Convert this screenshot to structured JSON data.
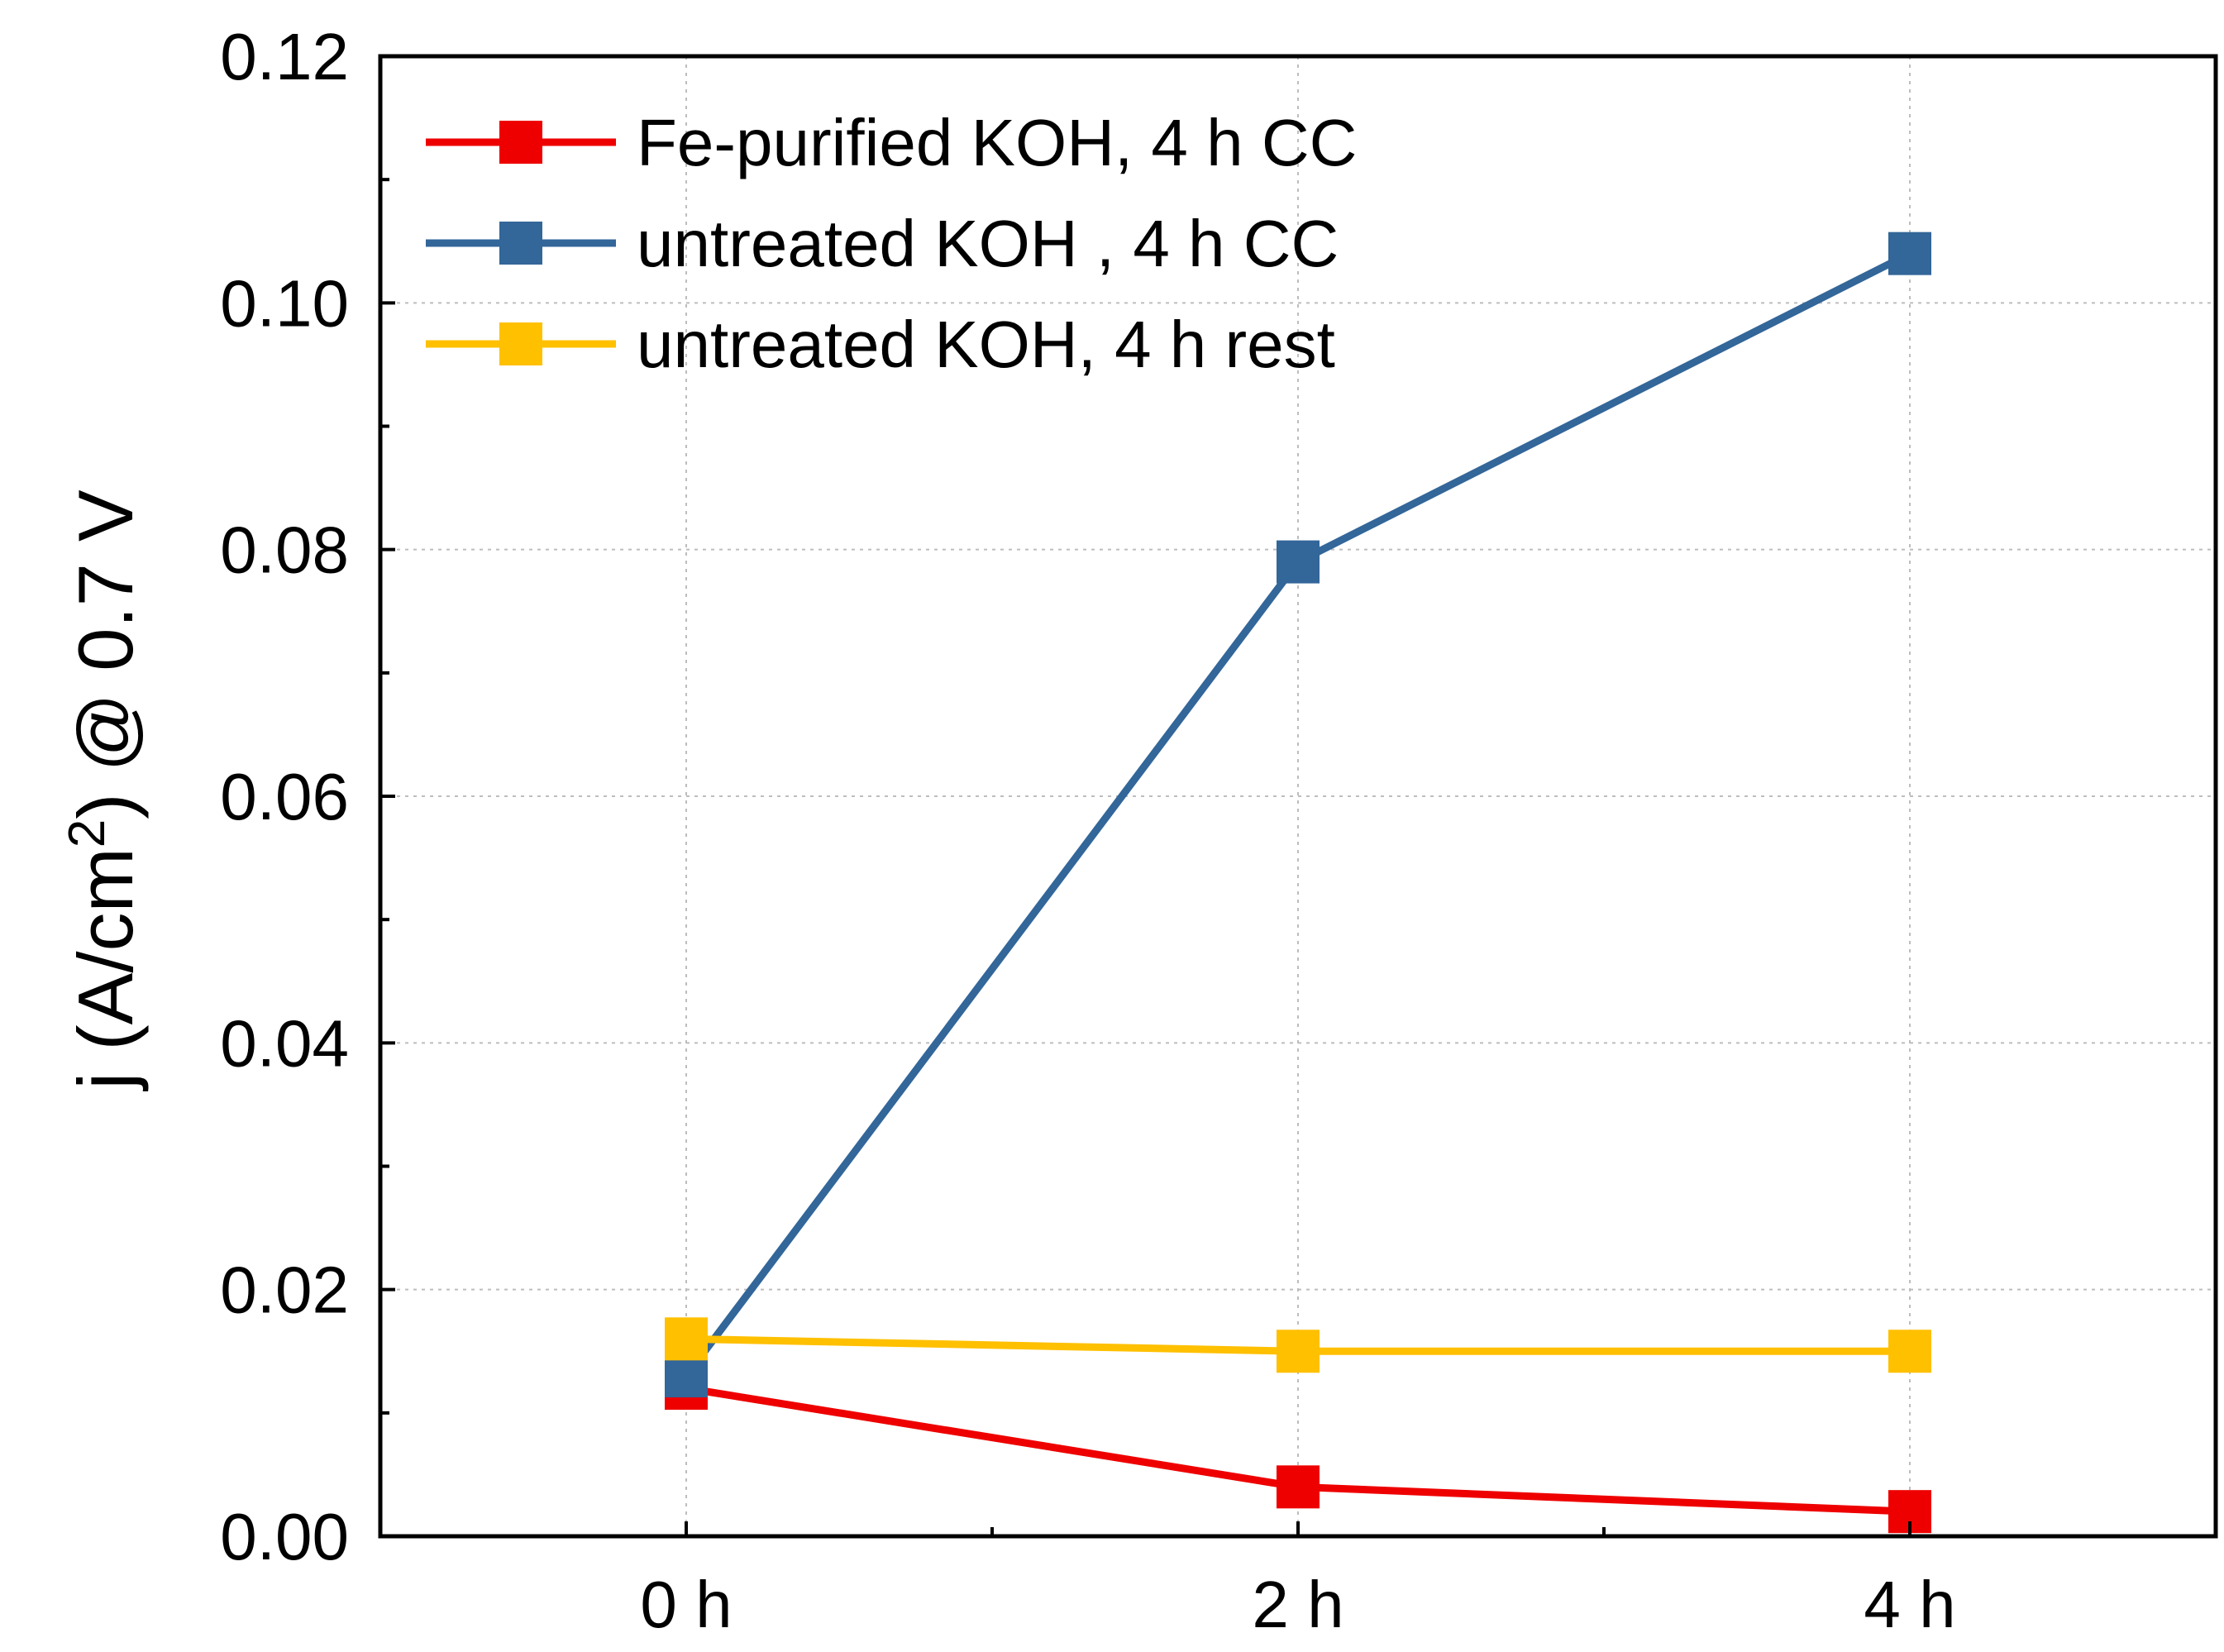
{
  "chart_data": {
    "type": "line",
    "title": "",
    "xlabel": "",
    "ylabel": {
      "prefix": "j (A/cm",
      "superscript": "2",
      "suffix": ") @ 0.7 V"
    },
    "categories": [
      "0 h",
      "2 h",
      "4 h"
    ],
    "x": [
      0,
      2,
      4
    ],
    "xlim": [
      -1,
      5
    ],
    "ylim": [
      0,
      0.12
    ],
    "yticks": [
      "0.00",
      "0.02",
      "0.04",
      "0.06",
      "0.08",
      "0.10",
      "0.12"
    ],
    "grid": true,
    "legend_position": "top-left",
    "series": [
      {
        "name": "Fe-purified KOH, 4 h CC",
        "color": "#ee0000",
        "values": [
          0.012,
          0.004,
          0.002
        ]
      },
      {
        "name": "untreated KOH , 4 h CC",
        "color": "#336699",
        "values": [
          0.013,
          0.079,
          0.104
        ]
      },
      {
        "name": "untreated KOH, 4 h rest",
        "color": "#ffc000",
        "values": [
          0.016,
          0.015,
          0.015
        ]
      }
    ]
  }
}
